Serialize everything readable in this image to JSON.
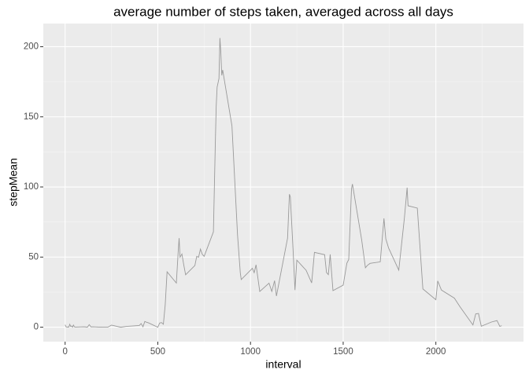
{
  "chart_data": {
    "type": "line",
    "title": "average number of steps taken, averaged across all days",
    "x_label": "interval",
    "y_label": "stepMean",
    "x": [
      0,
      5,
      10,
      15,
      20,
      25,
      30,
      35,
      40,
      45,
      50,
      55,
      100,
      110,
      120,
      130,
      140,
      150,
      200,
      230,
      250,
      300,
      330,
      400,
      410,
      420,
      430,
      440,
      450,
      500,
      510,
      520,
      530,
      540,
      550,
      600,
      610,
      615,
      620,
      630,
      640,
      650,
      700,
      710,
      720,
      730,
      740,
      750,
      800,
      810,
      815,
      820,
      830,
      835,
      840,
      845,
      850,
      900,
      930,
      945,
      950,
      1000,
      1010,
      1020,
      1030,
      1050,
      1100,
      1115,
      1130,
      1140,
      1200,
      1210,
      1215,
      1230,
      1240,
      1250,
      1300,
      1330,
      1345,
      1400,
      1410,
      1420,
      1430,
      1445,
      1500,
      1520,
      1530,
      1545,
      1550,
      1600,
      1620,
      1630,
      1645,
      1700,
      1720,
      1730,
      1745,
      1800,
      1830,
      1845,
      1850,
      1900,
      1930,
      2000,
      2010,
      2030,
      2100,
      2130,
      2200,
      2215,
      2230,
      2245,
      2300,
      2330,
      2345,
      2355
    ],
    "series": [
      {
        "name": "stepMean",
        "color": "#999999",
        "values": [
          1.7,
          0.3,
          0.1,
          0.2,
          0.1,
          2.1,
          0.5,
          0.9,
          0,
          1.5,
          0.3,
          0.1,
          0.3,
          0.2,
          0,
          1.8,
          0.2,
          0.3,
          0,
          0,
          1.5,
          0,
          0.6,
          1.2,
          2.6,
          0.3,
          4.1,
          3.5,
          3.1,
          0,
          3,
          3.3,
          2.1,
          16,
          39.5,
          31.5,
          53.8,
          63.5,
          49.9,
          52.2,
          44.5,
          37.4,
          44,
          50.5,
          49.9,
          55.7,
          52,
          50.5,
          68,
          129.4,
          157.5,
          171.2,
          177.3,
          206.2,
          195.9,
          179.6,
          183.4,
          143.5,
          66,
          38.8,
          34,
          40.6,
          42,
          38.9,
          44.5,
          25.5,
          31.4,
          25.5,
          33.2,
          22.2,
          63.5,
          94.8,
          92.8,
          54.5,
          26.5,
          47.8,
          40.6,
          31.6,
          53.4,
          51.7,
          39,
          37.5,
          51.9,
          26.1,
          30,
          45.7,
          48.3,
          98.7,
          102.1,
          62.1,
          42.4,
          44,
          45.5,
          46.6,
          77.6,
          63,
          56.5,
          40.7,
          77.5,
          99.5,
          86.6,
          84.9,
          27.3,
          19.6,
          33,
          26.5,
          20.7,
          14.6,
          1.6,
          9.5,
          9.8,
          0.7,
          3.7,
          4.7,
          0.6,
          1.1
        ]
      }
    ],
    "xlim": [
      -117.75,
      2472.75
    ],
    "ylim": [
      -10.3,
      216.5
    ],
    "xticks": [
      0,
      500,
      1000,
      1500,
      2000
    ],
    "yticks": [
      0,
      50,
      100,
      150,
      200
    ],
    "grid": true
  }
}
